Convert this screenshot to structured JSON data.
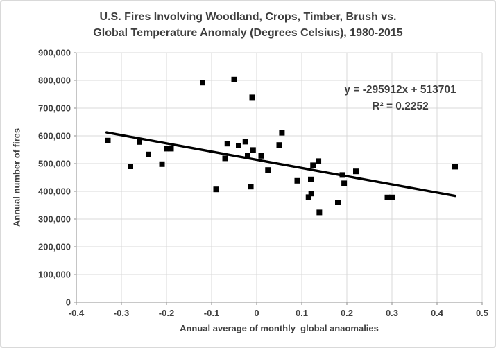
{
  "chart_data": {
    "type": "scatter",
    "title_line1": "U.S. Fires Involving Woodland, Crops, Timber, Brush vs.",
    "title_line2": "Global Temperature Anomaly (Degrees Celsius), 1980-2015",
    "xlabel": "Annual average of monthly  global anaomalies",
    "ylabel": "Annual number of fires",
    "xlim": [
      -0.4,
      0.5
    ],
    "ylim": [
      0,
      900000
    ],
    "x_tick_labels": [
      "-0.4",
      "-0.3",
      "-0.2",
      "-0.1",
      "0",
      "0.1",
      "0.2",
      "0.3",
      "0.4",
      "0.5"
    ],
    "y_tick_labels": [
      "0",
      "100,000",
      "200,000",
      "300,000",
      "400,000",
      "500,000",
      "600,000",
      "700,000",
      "800,000",
      "900,000"
    ],
    "grid": true,
    "legend": "none",
    "points": [
      [
        -0.33,
        583000
      ],
      [
        -0.28,
        490000
      ],
      [
        -0.26,
        578000
      ],
      [
        -0.24,
        533000
      ],
      [
        -0.21,
        498000
      ],
      [
        -0.2,
        554000
      ],
      [
        -0.19,
        554000
      ],
      [
        -0.12,
        792000
      ],
      [
        -0.09,
        407000
      ],
      [
        -0.07,
        519000
      ],
      [
        -0.065,
        572000
      ],
      [
        -0.05,
        803000
      ],
      [
        -0.04,
        565000
      ],
      [
        -0.025,
        579000
      ],
      [
        -0.02,
        529000
      ],
      [
        -0.01,
        739000
      ],
      [
        -0.008,
        549000
      ],
      [
        -0.013,
        417000
      ],
      [
        0.01,
        528000
      ],
      [
        0.025,
        477000
      ],
      [
        0.05,
        567000
      ],
      [
        0.056,
        611000
      ],
      [
        0.09,
        438000
      ],
      [
        0.12,
        443000
      ],
      [
        0.121,
        392000
      ],
      [
        0.115,
        379000
      ],
      [
        0.125,
        494000
      ],
      [
        0.137,
        509000
      ],
      [
        0.139,
        324000
      ],
      [
        0.18,
        360000
      ],
      [
        0.19,
        459000
      ],
      [
        0.194,
        429000
      ],
      [
        0.22,
        472000
      ],
      [
        0.29,
        378000
      ],
      [
        0.3,
        378000
      ],
      [
        0.44,
        489000
      ]
    ],
    "trendline": {
      "slope": -295912,
      "intercept": 513701,
      "x_start": -0.333,
      "x_end": 0.44,
      "equation_label": "y = -295912x + 513701",
      "r2_label": "R² = 0.2252"
    },
    "colors": {
      "marker": "#000000",
      "trend": "#000000",
      "gridline": "#d9d9d9",
      "axis": "#a6a6a6",
      "text": "#3f3f3f"
    }
  }
}
